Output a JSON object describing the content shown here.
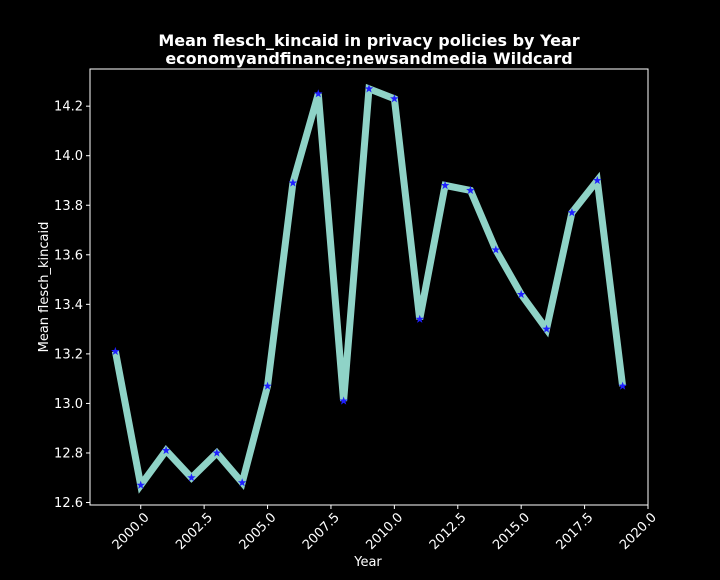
{
  "chart_data": {
    "type": "line",
    "title": "Mean flesch_kincaid in privacy policies by Year",
    "subtitle": "economyandfinance;newsandmedia Wildcard",
    "xlabel": "Year",
    "ylabel": "Mean flesch_kincaid",
    "xlim": [
      1998.0,
      2020.0
    ],
    "ylim": [
      12.59,
      14.35
    ],
    "x_ticks": [
      2000.0,
      2002.5,
      2005.0,
      2007.5,
      2010.0,
      2012.5,
      2015.0,
      2017.5,
      2020.0
    ],
    "x_tick_labels": [
      "2000.0",
      "2002.5",
      "2005.0",
      "2007.5",
      "2010.0",
      "2012.5",
      "2015.0",
      "2017.5",
      "2020.0"
    ],
    "y_ticks": [
      12.6,
      12.8,
      13.0,
      13.2,
      13.4,
      13.6,
      13.8,
      14.0,
      14.2
    ],
    "y_tick_labels": [
      "12.6",
      "12.8",
      "13.0",
      "13.2",
      "13.4",
      "13.6",
      "13.8",
      "14.0",
      "14.2"
    ],
    "grid": false,
    "legend": "none",
    "background": "#000000",
    "series": [
      {
        "x": [
          1999,
          2000,
          2001,
          2002,
          2003,
          2004,
          2005,
          2006,
          2007,
          2008,
          2009,
          2010,
          2011,
          2012,
          2013,
          2014,
          2015,
          2016,
          2017,
          2018,
          2019
        ],
        "values": [
          13.21,
          12.67,
          12.81,
          12.7,
          12.8,
          12.68,
          13.07,
          13.89,
          14.25,
          13.01,
          14.27,
          14.23,
          13.34,
          13.88,
          13.86,
          13.62,
          13.44,
          13.3,
          13.77,
          13.9,
          13.07
        ],
        "line_color": "#8fd3c7",
        "marker": "star",
        "marker_color": "#1f1fff"
      }
    ]
  }
}
